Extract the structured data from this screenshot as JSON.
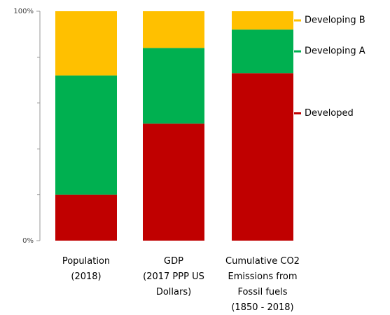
{
  "chart_data": {
    "type": "stacked_bar",
    "categories": [
      [
        "Population",
        "(2018)"
      ],
      [
        "GDP",
        "(2017 PPP US",
        "Dollars)"
      ],
      [
        "Cumulative CO2",
        "Emissions from",
        "Fossil fuels",
        "(1850 - 2018)"
      ]
    ],
    "series": [
      {
        "name": "Developed",
        "color": "#c00000",
        "values": [
          20,
          51,
          73
        ]
      },
      {
        "name": "Developing A",
        "color": "#00b050",
        "values": [
          52,
          33,
          19
        ]
      },
      {
        "name": "Developing B",
        "color": "#ffc000",
        "values": [
          28,
          16,
          8
        ]
      }
    ],
    "ylim": [
      0,
      100
    ],
    "yticks": [
      {
        "value": 0,
        "label": "0%"
      },
      {
        "value": 100,
        "label": "100%"
      }
    ],
    "minor_yticks": [
      20,
      40,
      60,
      80
    ],
    "legend": "right"
  }
}
